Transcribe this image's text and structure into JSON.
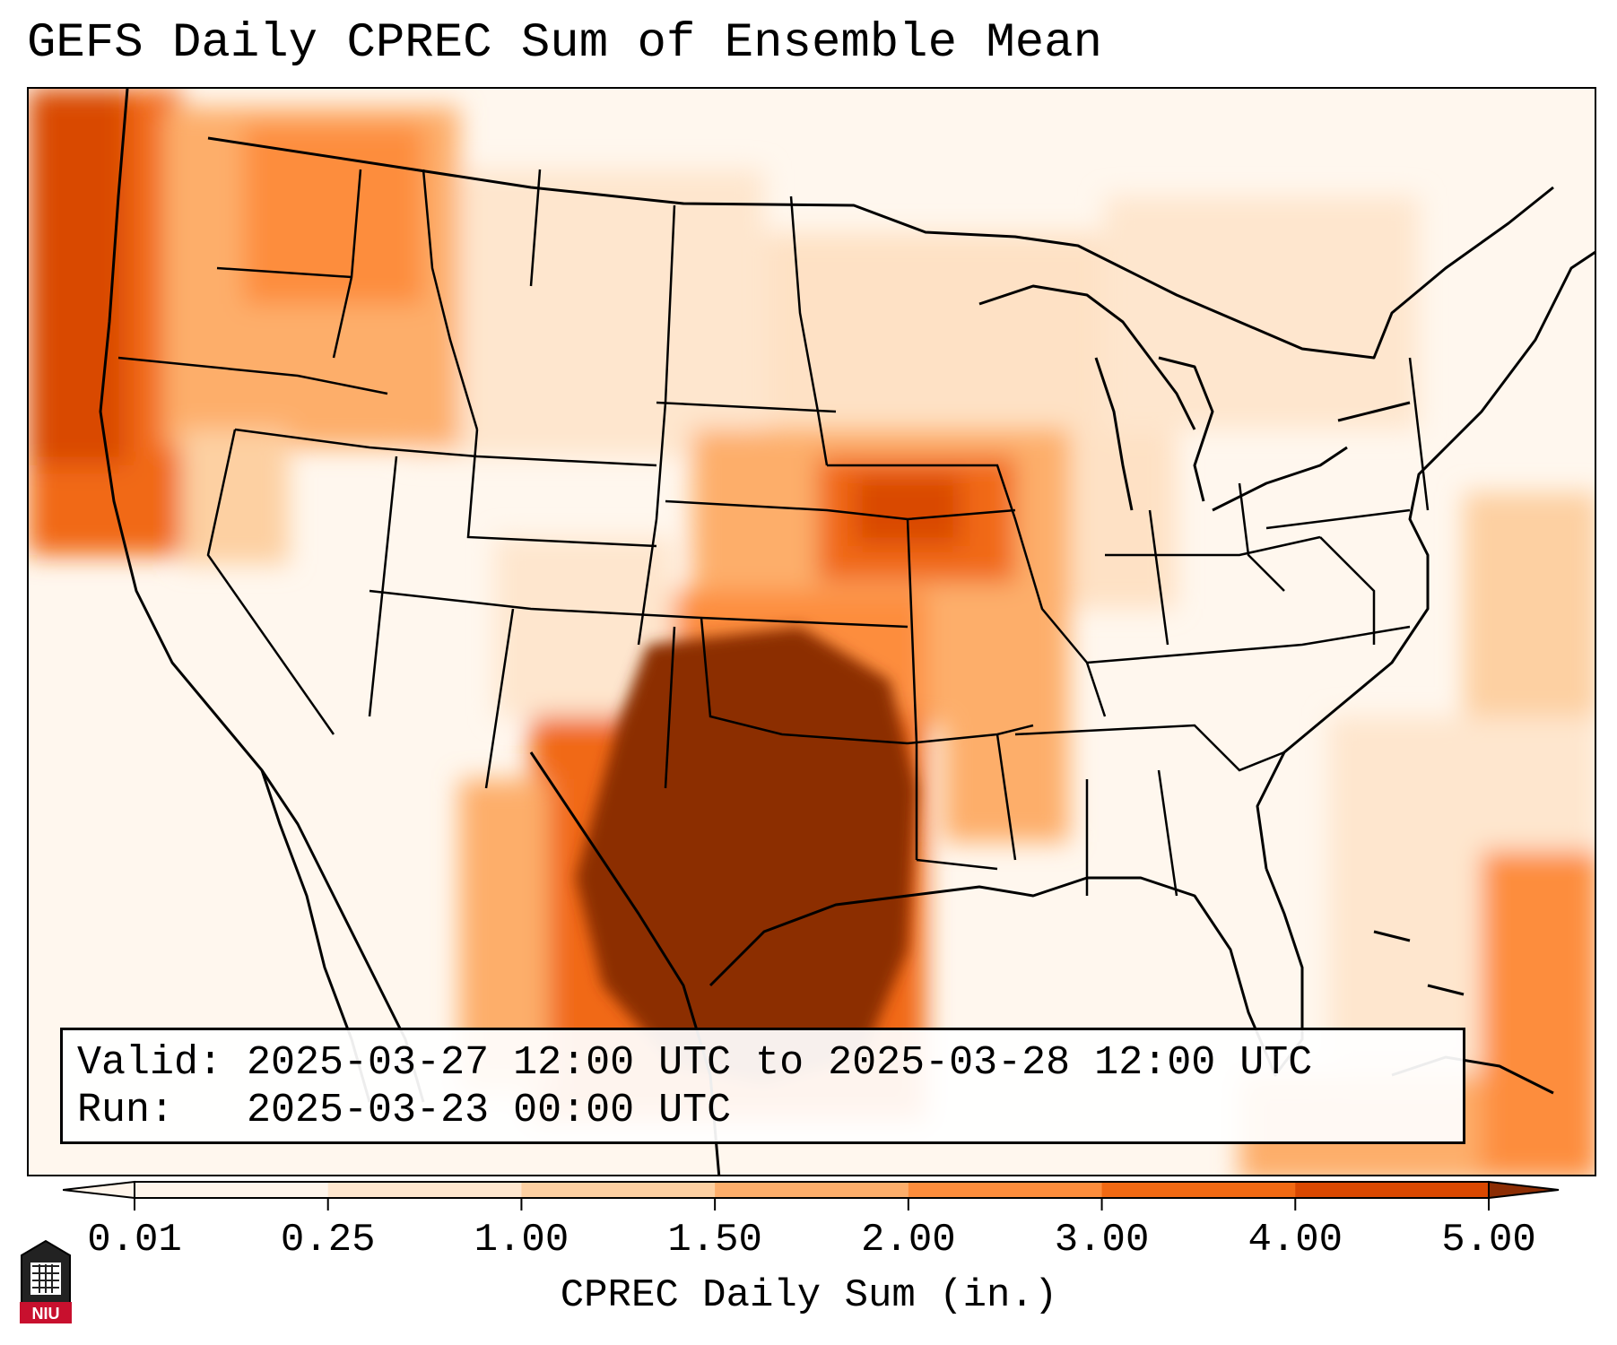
{
  "title": "GEFS Daily CPREC Sum of Ensemble Mean",
  "info": {
    "valid_line": "Valid: 2025-03-27 12:00 UTC to 2025-03-28 12:00 UTC",
    "run_line": "Run:   2025-03-23 00:00 UTC"
  },
  "colorbar": {
    "label": "CPREC Daily Sum (in.)",
    "ticks": [
      "0.01",
      "0.25",
      "1.00",
      "1.50",
      "2.00",
      "3.00",
      "4.00",
      "5.00"
    ],
    "colors": [
      "#fff5eb",
      "#fee6ce",
      "#fdd0a2",
      "#fdae6b",
      "#fd8d3c",
      "#f16913",
      "#d94801",
      "#8c2d04"
    ]
  },
  "logo": {
    "text": "NIU",
    "color": "#c8102e"
  }
}
